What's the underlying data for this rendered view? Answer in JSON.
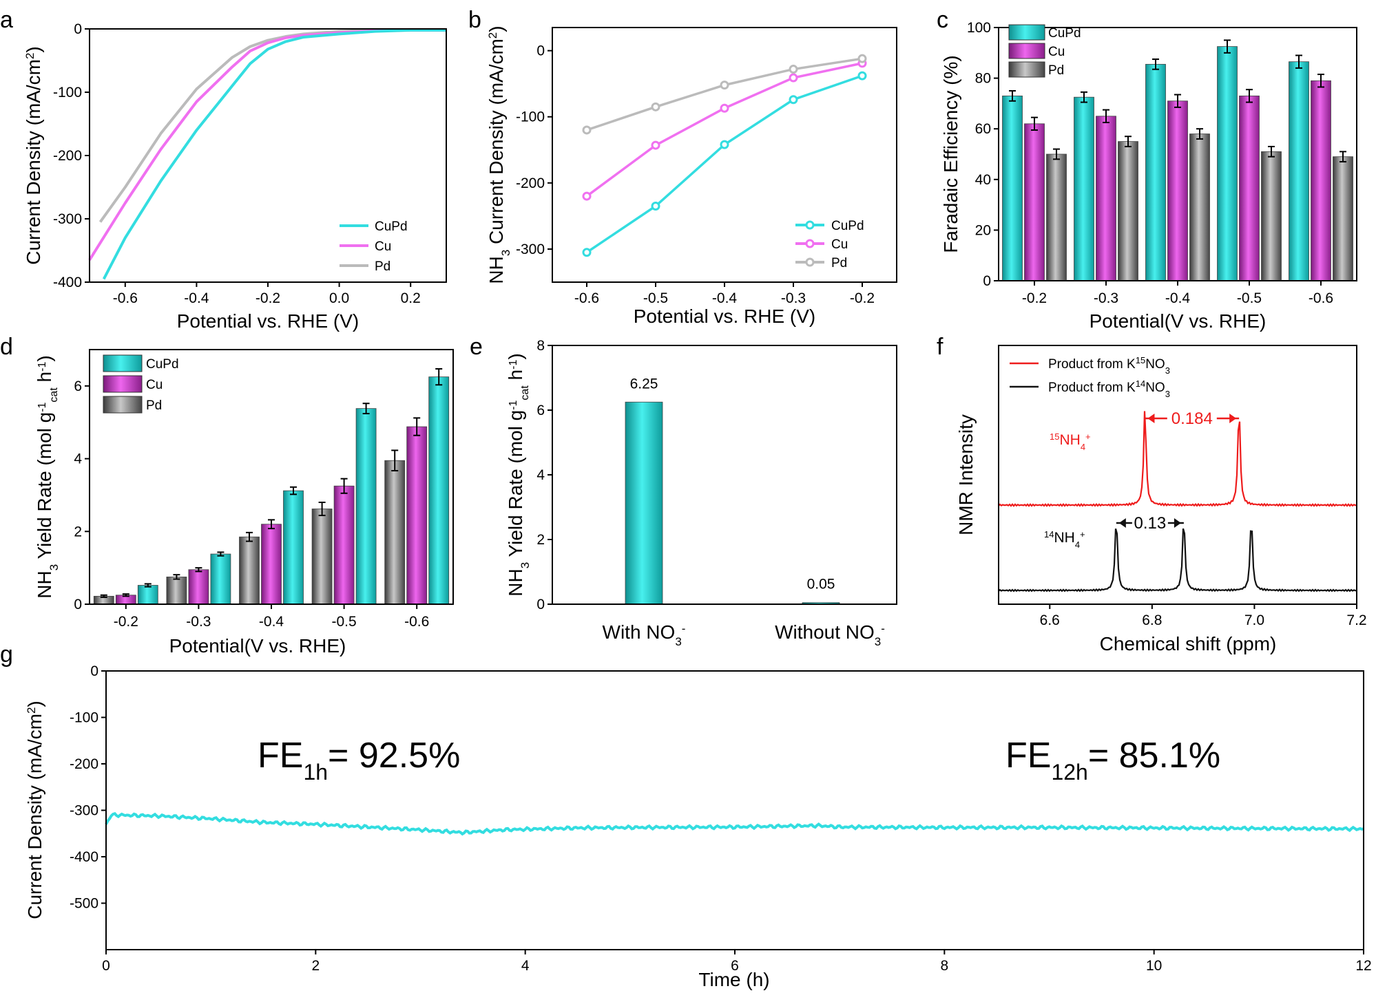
{
  "chart_data": [
    {
      "panel": "a",
      "type": "line",
      "xlabel": "Potential vs. RHE (V)",
      "ylabel": "Current Density (mA/cm2)",
      "xlim": [
        -0.7,
        0.3
      ],
      "ylim": [
        -400,
        0
      ],
      "xticks": [
        -0.6,
        -0.4,
        -0.2,
        0.0,
        0.2
      ],
      "yticks": [
        0,
        -100,
        -200,
        -300,
        -400
      ],
      "xtick_labels": [
        "-0.6",
        "-0.4",
        "-0.2",
        "0.0",
        "0.2"
      ],
      "ytick_labels": [
        "0",
        "-100",
        "-200",
        "-300",
        "-400"
      ],
      "series": [
        {
          "name": "CuPd",
          "color": "#33dde0",
          "x": [
            -0.66,
            -0.6,
            -0.5,
            -0.4,
            -0.3,
            -0.25,
            -0.2,
            -0.15,
            -0.1,
            0.0,
            0.1,
            0.2,
            0.3
          ],
          "y": [
            -395,
            -330,
            -240,
            -160,
            -90,
            -55,
            -32,
            -20,
            -13,
            -8,
            -4,
            -2,
            -2
          ]
        },
        {
          "name": "Cu",
          "color": "#f070f0",
          "x": [
            -0.7,
            -0.6,
            -0.5,
            -0.4,
            -0.3,
            -0.25,
            -0.2,
            -0.15,
            -0.1,
            0.0,
            0.1,
            0.2,
            0.3
          ],
          "y": [
            -365,
            -275,
            -190,
            -115,
            -60,
            -35,
            -22,
            -14,
            -10,
            -6,
            -3,
            -2,
            -2
          ]
        },
        {
          "name": "Pd",
          "color": "#bbbbbb",
          "x": [
            -0.67,
            -0.6,
            -0.5,
            -0.4,
            -0.3,
            -0.25,
            -0.2,
            -0.15,
            -0.1,
            0.0,
            0.1,
            0.2,
            0.3
          ],
          "y": [
            -305,
            -250,
            -165,
            -95,
            -45,
            -28,
            -18,
            -12,
            -8,
            -4,
            -2,
            -1,
            -1
          ]
        }
      ]
    },
    {
      "panel": "b",
      "type": "line",
      "xlabel": "Potential vs. RHE (V)",
      "ylabel": "NH3 Current Density (mA/cm2)",
      "xlim": [
        -0.65,
        -0.15
      ],
      "ylim": [
        -350,
        35
      ],
      "xticks": [
        -0.6,
        -0.5,
        -0.4,
        -0.3,
        -0.2
      ],
      "yticks": [
        0,
        -100,
        -200,
        -300
      ],
      "xtick_labels": [
        "-0.6",
        "-0.5",
        "-0.4",
        "-0.3",
        "-0.2"
      ],
      "ytick_labels": [
        "0",
        "-100",
        "-200",
        "-300"
      ],
      "series": [
        {
          "name": "CuPd",
          "color": "#33dde0",
          "x": [
            -0.6,
            -0.5,
            -0.4,
            -0.3,
            -0.2
          ],
          "y": [
            -305,
            -235,
            -142,
            -74,
            -38
          ]
        },
        {
          "name": "Cu",
          "color": "#f070f0",
          "x": [
            -0.6,
            -0.5,
            -0.4,
            -0.3,
            -0.2
          ],
          "y": [
            -220,
            -143,
            -87,
            -41,
            -19
          ]
        },
        {
          "name": "Pd",
          "color": "#bbbbbb",
          "x": [
            -0.6,
            -0.5,
            -0.4,
            -0.3,
            -0.2
          ],
          "y": [
            -120,
            -85,
            -52,
            -28,
            -12
          ]
        }
      ]
    },
    {
      "panel": "c",
      "type": "bar",
      "xlabel": "Potential(V vs. RHE)",
      "ylabel": "Faradaic Efficiency (%)",
      "ylim": [
        0,
        100
      ],
      "yticks": [
        0,
        20,
        40,
        60,
        80,
        100
      ],
      "ytick_labels": [
        "0",
        "20",
        "40",
        "60",
        "80",
        "100"
      ],
      "categories": [
        "-0.2",
        "-0.3",
        "-0.4",
        "-0.5",
        "-0.6"
      ],
      "series": [
        {
          "name": "CuPd",
          "color": "#22c8c8",
          "values": [
            73,
            72.5,
            85.5,
            92.5,
            86.5
          ],
          "errors": [
            2,
            2,
            2,
            2.5,
            2.5
          ]
        },
        {
          "name": "Cu",
          "color": "#c040c0",
          "values": [
            62,
            65,
            71,
            73,
            79
          ],
          "errors": [
            2.5,
            2.5,
            2.5,
            2.5,
            2.5
          ]
        },
        {
          "name": "Pd",
          "color": "#777777",
          "values": [
            50,
            55,
            58,
            51,
            49
          ],
          "errors": [
            2,
            2,
            2,
            2,
            2
          ]
        }
      ]
    },
    {
      "panel": "d",
      "type": "bar",
      "xlabel": "Potential(V vs. RHE)",
      "ylabel": "NH3 Yield Rate (mol g-1cat h-1)",
      "ylim": [
        0,
        7
      ],
      "yticks": [
        0,
        2,
        4,
        6
      ],
      "ytick_labels": [
        "0",
        "2",
        "4",
        "6"
      ],
      "categories": [
        "-0.2",
        "-0.3",
        "-0.4",
        "-0.5",
        "-0.6"
      ],
      "series": [
        {
          "name": "CuPd",
          "color": "#22c8c8",
          "values": [
            0.52,
            1.38,
            3.12,
            5.38,
            6.25
          ],
          "errors": [
            0.04,
            0.05,
            0.1,
            0.14,
            0.22
          ]
        },
        {
          "name": "Cu",
          "color": "#c040c0",
          "values": [
            0.25,
            0.95,
            2.2,
            3.25,
            4.88
          ],
          "errors": [
            0.03,
            0.05,
            0.12,
            0.2,
            0.24
          ]
        },
        {
          "name": "Pd",
          "color": "#777777",
          "values": [
            0.22,
            0.75,
            1.85,
            2.62,
            3.95
          ],
          "errors": [
            0.03,
            0.06,
            0.12,
            0.18,
            0.28
          ]
        }
      ]
    },
    {
      "panel": "e",
      "type": "bar",
      "xlabel": "",
      "ylabel": "NH3 Yield Rate (mol g-1cat h-1)",
      "ylim": [
        0,
        8
      ],
      "yticks": [
        0,
        2,
        4,
        6,
        8
      ],
      "ytick_labels": [
        "0",
        "2",
        "4",
        "6",
        "8"
      ],
      "categories": [
        "With NO3-",
        "Without NO3-"
      ],
      "values": [
        6.25,
        0.05
      ],
      "value_labels": [
        "6.25",
        "0.05"
      ],
      "color": "#22c8c8"
    },
    {
      "panel": "f",
      "type": "line",
      "xlabel": "Chemical shift (ppm)",
      "ylabel": "NMR Intensity",
      "xlim": [
        6.5,
        7.2
      ],
      "xticks": [
        6.6,
        6.8,
        7.0,
        7.2
      ],
      "xtick_labels": [
        "6.6",
        "6.8",
        "7.0",
        "7.2"
      ],
      "series": [
        {
          "name": "Product from K15NO3",
          "color": "#ee1c1c",
          "peaks_ppm": [
            6.786,
            6.97
          ],
          "species": "15NH4+",
          "splitting": "0.184"
        },
        {
          "name": "Product from K14NO3",
          "color": "#111111",
          "peaks_ppm": [
            6.73,
            6.862,
            6.994
          ],
          "species": "14NH4+",
          "splitting": "0.13"
        }
      ]
    },
    {
      "panel": "g",
      "type": "line",
      "xlabel": "Time (h)",
      "ylabel": "Current Density (mA/cm2)",
      "xlim": [
        0,
        12
      ],
      "ylim": [
        -600,
        0
      ],
      "xticks": [
        0,
        2,
        4,
        6,
        8,
        10,
        12
      ],
      "yticks": [
        0,
        -100,
        -200,
        -300,
        -400,
        -500
      ],
      "xtick_labels": [
        "0",
        "2",
        "4",
        "6",
        "8",
        "10",
        "12"
      ],
      "ytick_labels": [
        "0",
        "-100",
        "-200",
        "-300",
        "-400",
        "-500"
      ],
      "series": [
        {
          "name": "CuPd",
          "color": "#33dde0",
          "x": [
            0,
            0.05,
            0.5,
            1,
            1.5,
            2,
            2.5,
            3,
            3.4,
            3.8,
            4.5,
            5,
            6,
            6.8,
            7,
            8,
            9,
            10,
            11,
            12
          ],
          "y": [
            -330,
            -310,
            -312,
            -318,
            -326,
            -330,
            -336,
            -342,
            -348,
            -342,
            -338,
            -337,
            -336,
            -333,
            -336,
            -337,
            -337,
            -338,
            -339,
            -340
          ]
        }
      ],
      "annotations": {
        "fe1_main": "FE",
        "fe1_sub": "1h",
        "fe1_val": "= 92.5%",
        "fe2_main": "FE",
        "fe2_sub": "12h",
        "fe2_val": "= 85.1%"
      }
    }
  ],
  "panel_labels": [
    "a",
    "b",
    "c",
    "d",
    "e",
    "f",
    "g"
  ],
  "legend": {
    "cupd": "CuPd",
    "cu": "Cu",
    "pd": "Pd"
  },
  "text": {
    "pot_rhe": "Potential vs. RHE (V)",
    "pot_paren": "Potential(V vs. RHE)",
    "cur_density": "Current Density (mA/cm",
    "nh3_pre": "NH",
    "sub3": "3",
    "cur_density_b": " Current Density (mA/cm",
    "sq": "2",
    "close_paren": ")",
    "fe_label": "Faradaic Efficiency (%)",
    "yield_main": " Yield Rate (mol g",
    "sup_m1": "-1",
    "sub_cat": "cat",
    "h_unit": " h",
    "with_no3": "With NO",
    "without_no3": "Without NO",
    "minus": "-",
    "prod15": "Product from K",
    "prod14": "Product from K",
    "iso15": "15",
    "iso14": "14",
    "no": "NO",
    "nh": "NH",
    "sub4": "4",
    "plus": "+",
    "split15": "0.184",
    "split14": "0.13",
    "nmr_label": "NMR Intensity",
    "shift_label": "Chemical shift (ppm)",
    "time_label": "Time (h)"
  }
}
